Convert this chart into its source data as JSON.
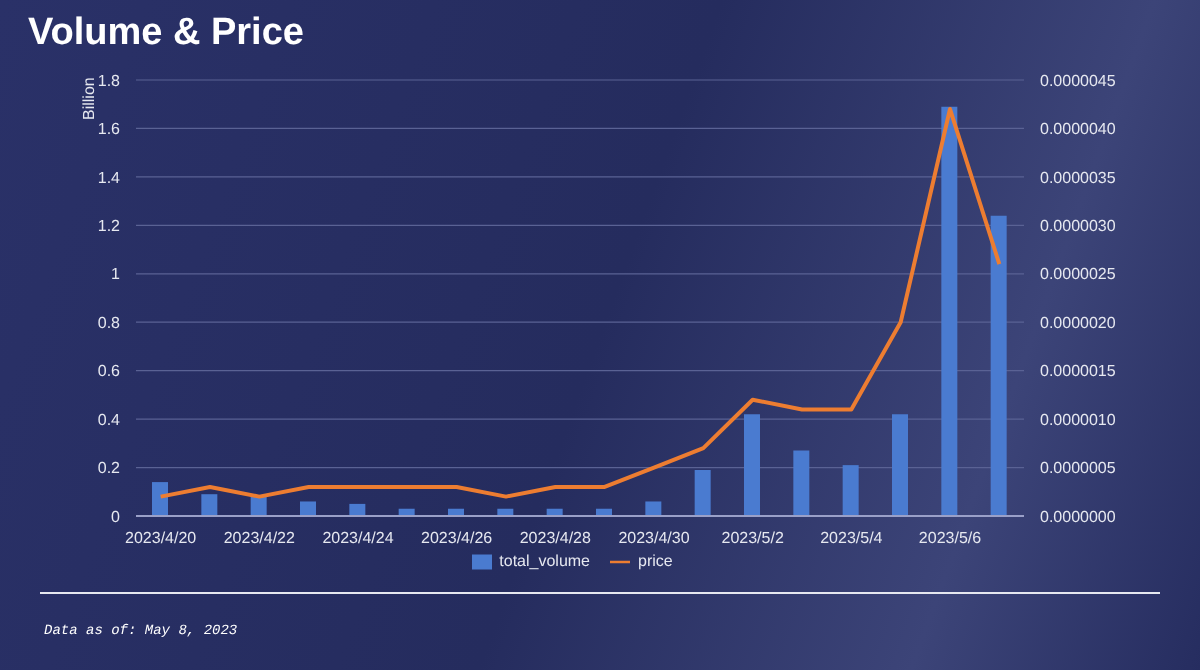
{
  "chart_data": {
    "type": "bar",
    "title": "Volume & Price",
    "ylabel": "Billion",
    "categories": [
      "2023/4/20",
      null,
      "2023/4/22",
      null,
      "2023/4/24",
      null,
      "2023/4/26",
      null,
      "2023/4/28",
      null,
      "2023/4/30",
      null,
      "2023/5/2",
      null,
      "2023/5/4",
      null,
      "2023/5/6",
      null
    ],
    "series": [
      {
        "name": "total_volume",
        "color": "#4a7bd0",
        "values": [
          0.14,
          0.09,
          0.08,
          0.06,
          0.05,
          0.03,
          0.03,
          0.03,
          0.03,
          0.03,
          0.06,
          0.19,
          0.42,
          0.27,
          0.21,
          0.42,
          1.69,
          1.24
        ]
      },
      {
        "name": "price",
        "type": "line",
        "axis": "y2",
        "color": "#ed7d31",
        "values": [
          2e-07,
          3e-07,
          2e-07,
          3e-07,
          3e-07,
          3e-07,
          3e-07,
          2e-07,
          3e-07,
          3e-07,
          5e-07,
          7e-07,
          1.2e-06,
          1.1e-06,
          1.1e-06,
          2e-06,
          4.2e-06,
          2.6e-06
        ]
      }
    ],
    "ylim": [
      0,
      1.8
    ],
    "yticks": [
      0,
      0.2,
      0.4,
      0.6,
      0.8,
      1,
      1.2,
      1.4,
      1.6,
      1.8
    ],
    "y2lim": [
      0,
      4.5e-06
    ],
    "y2ticks": [
      {
        "value": 0,
        "label": "0.0000000"
      },
      {
        "value": 5e-07,
        "label": "0.0000005"
      },
      {
        "value": 1e-06,
        "label": "0.0000010"
      },
      {
        "value": 1.5e-06,
        "label": "0.0000015"
      },
      {
        "value": 2e-06,
        "label": "0.0000020"
      },
      {
        "value": 2.5e-06,
        "label": "0.0000025"
      },
      {
        "value": 3e-06,
        "label": "0.0000030"
      },
      {
        "value": 3.5e-06,
        "label": "0.0000035"
      },
      {
        "value": 4e-06,
        "label": "0.0000040"
      },
      {
        "value": 4.5e-06,
        "label": "0.0000045"
      }
    ],
    "grid": "y",
    "legend": "bottom",
    "marker": "none",
    "annotations": [
      "Data as of: May 8, 2023"
    ]
  }
}
